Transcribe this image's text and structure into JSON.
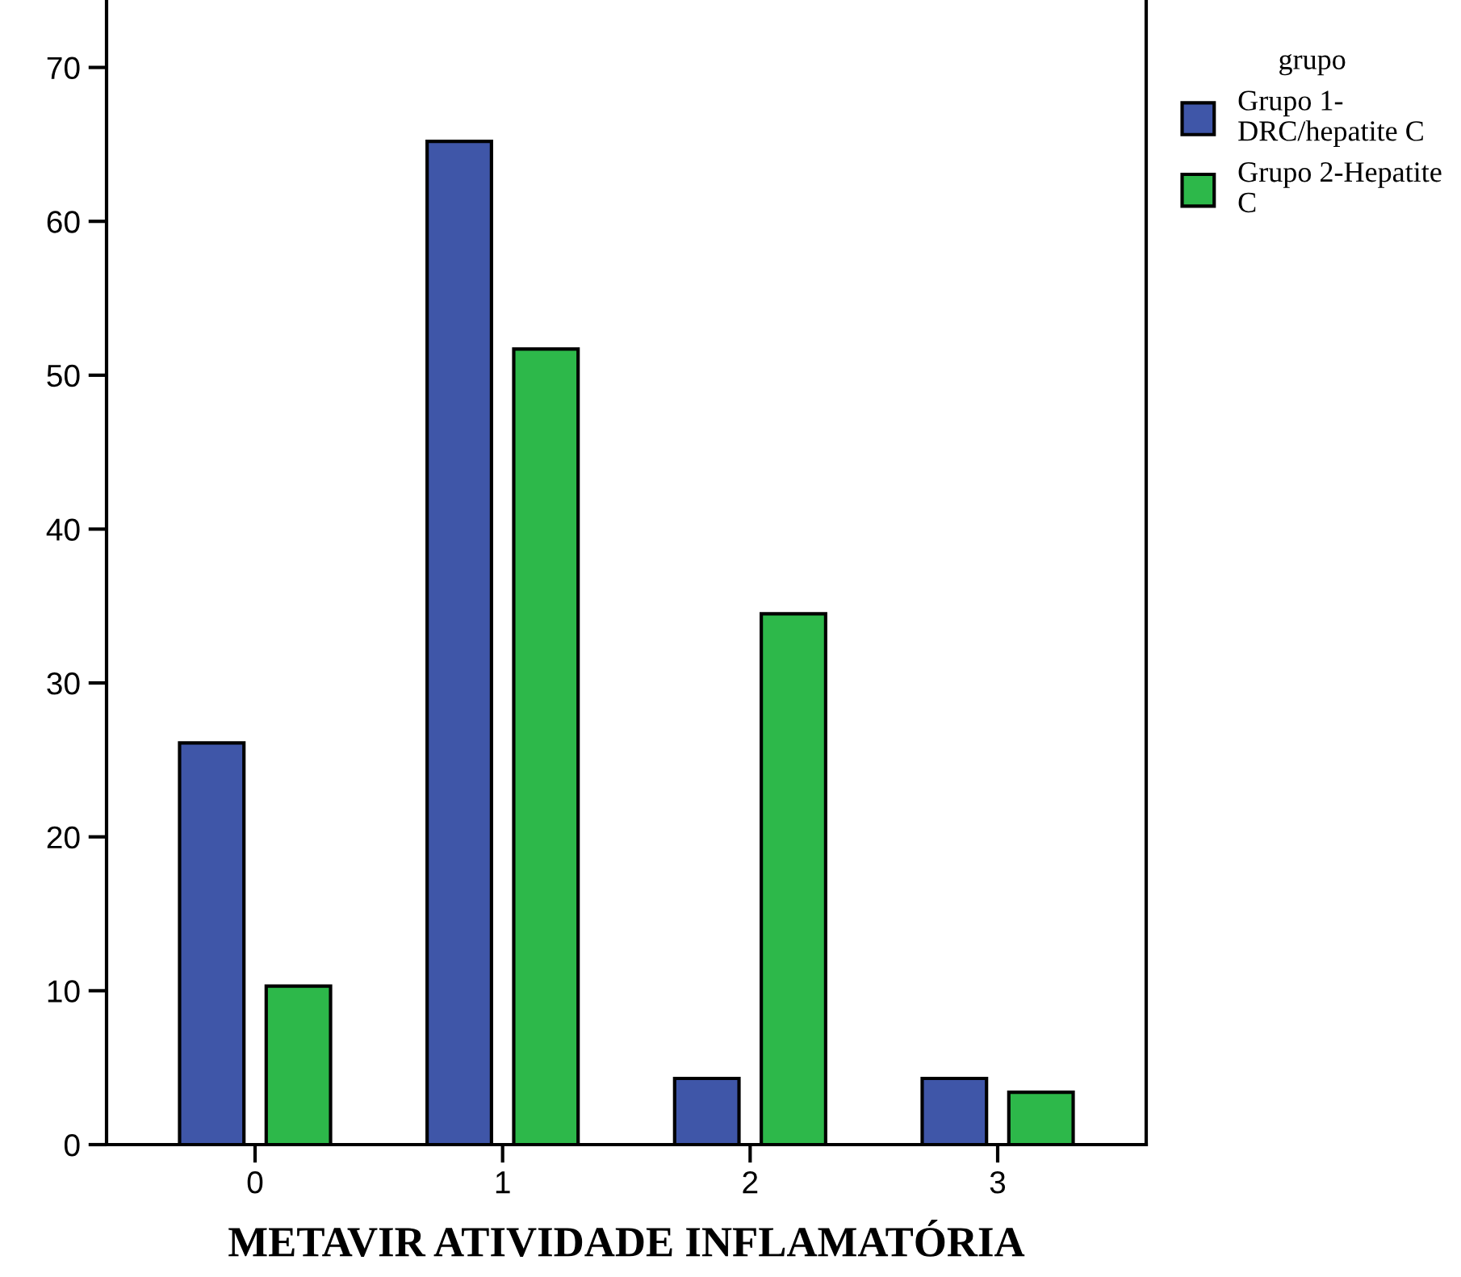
{
  "chart_data": {
    "type": "bar",
    "xlabel": "METAVIR ATIVIDADE INFLAMATÓRIA",
    "legend_title": "grupo",
    "legend": "top right",
    "categories": [
      "0",
      "1",
      "2",
      "3"
    ],
    "series": [
      {
        "name": "Grupo 1-\nDRC/hepatite C",
        "color": "#3f56a8",
        "values": [
          26.1,
          65.2,
          4.3,
          4.3
        ]
      },
      {
        "name": "Grupo 2-Hepatite\nC",
        "color": "#2db84a",
        "values": [
          10.3,
          51.7,
          34.5,
          3.4
        ]
      }
    ],
    "ylim": [
      0,
      74.3
    ],
    "yticks": [
      0,
      10,
      20,
      30,
      40,
      50,
      60,
      70
    ],
    "grid": false
  }
}
